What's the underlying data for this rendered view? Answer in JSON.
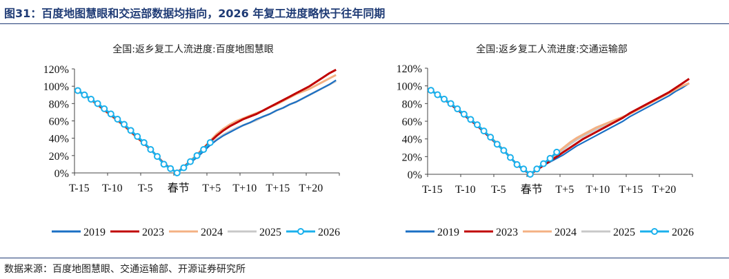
{
  "figure_title": "图31：百度地图慧眼和交运部数据均指向，2026 年复工进度略快于往年同期",
  "source": "数据来源：百度地图慧眼、交通运输部、开源证券研究所",
  "colors": {
    "2019": "#1a6fc4",
    "2023": "#c00000",
    "2024": "#f4b183",
    "2025": "#c8c8c8",
    "2026": "#1ab0ec"
  },
  "chart_data": [
    {
      "type": "line",
      "title": "全国:返乡复工人流进度:百度地图慧眼",
      "x_tick_labels": [
        "T-15",
        "T-10",
        "T-5",
        "春节",
        "T+5",
        "T+10",
        "T+15",
        "T+20"
      ],
      "x_tick_days": [
        -15,
        -10,
        -5,
        0,
        5,
        10,
        15,
        20
      ],
      "x_range": [
        -15,
        24
      ],
      "ylim": [
        0,
        120
      ],
      "y_ticks": [
        "0%",
        "20%",
        "40%",
        "60%",
        "80%",
        "100%",
        "120%"
      ],
      "legend_position": "bottom",
      "series": [
        {
          "name": "2019",
          "start": -15,
          "values": [
            95,
            90,
            85,
            79,
            73,
            67,
            61,
            55,
            48,
            41,
            34,
            27,
            19,
            11,
            5,
            0,
            6,
            12,
            18,
            25,
            32,
            38,
            43,
            47,
            51,
            55,
            58,
            62,
            65,
            68,
            72,
            75,
            79,
            82,
            86,
            90,
            94,
            98,
            102,
            107
          ]
        },
        {
          "name": "2023",
          "start": -15,
          "values": [
            95,
            90,
            85,
            79,
            73,
            67,
            61,
            55,
            48,
            41,
            34,
            27,
            19,
            11,
            5,
            0,
            7,
            13,
            20,
            28,
            36,
            43,
            49,
            54,
            58,
            62,
            65,
            68,
            72,
            76,
            80,
            84,
            88,
            92,
            96,
            100,
            105,
            110,
            115,
            119
          ]
        },
        {
          "name": "2024",
          "start": -15,
          "values": [
            95,
            90,
            84,
            78,
            72,
            66,
            60,
            54,
            47,
            40,
            34,
            27,
            19,
            11,
            5,
            0,
            7,
            14,
            21,
            29,
            37,
            45,
            51,
            56,
            60,
            63,
            66,
            69,
            72,
            76,
            79,
            83,
            87,
            91,
            94,
            97,
            101,
            105,
            109,
            113
          ]
        },
        {
          "name": "2025",
          "start": -15,
          "values": [
            95,
            90,
            85,
            79,
            73,
            67,
            61,
            55,
            48,
            41,
            34,
            27,
            19,
            11,
            5,
            0,
            6,
            12,
            18,
            25,
            33,
            39,
            44,
            48,
            52,
            55,
            58,
            61,
            65,
            68,
            72,
            75,
            79,
            82,
            86,
            90,
            94,
            98,
            102,
            106
          ]
        },
        {
          "name": "2026",
          "start": -15,
          "markers": true,
          "values": [
            95,
            90,
            85,
            80,
            74,
            68,
            62,
            56,
            49,
            42,
            35,
            27,
            19,
            10,
            5,
            0,
            6,
            13,
            20,
            27,
            35
          ]
        }
      ]
    },
    {
      "type": "line",
      "title": "全国:返乡复工人流进度:交通运输部",
      "x_tick_labels": [
        "T-15",
        "T-10",
        "T-5",
        "春节",
        "T+5",
        "T+10",
        "T+15",
        "T+20"
      ],
      "x_tick_days": [
        -15,
        -10,
        -5,
        0,
        5,
        10,
        15,
        20
      ],
      "x_range": [
        -15,
        24
      ],
      "ylim": [
        0,
        120
      ],
      "y_ticks": [
        "0%",
        "20%",
        "40%",
        "60%",
        "80%",
        "100%",
        "120%"
      ],
      "legend_position": "bottom",
      "series": [
        {
          "name": "2019",
          "start": -15,
          "values": [
            95,
            90,
            85,
            79,
            73,
            67,
            61,
            55,
            48,
            41,
            34,
            27,
            19,
            11,
            5,
            0,
            5,
            10,
            14,
            18,
            22,
            27,
            32,
            36,
            40,
            44,
            48,
            52,
            56,
            60,
            65,
            69,
            73,
            77,
            81,
            85,
            89,
            94,
            98,
            103
          ]
        },
        {
          "name": "2023",
          "start": -15,
          "values": [
            95,
            90,
            85,
            79,
            73,
            67,
            61,
            55,
            48,
            41,
            34,
            27,
            19,
            11,
            5,
            0,
            5,
            10,
            15,
            20,
            25,
            30,
            35,
            40,
            44,
            48,
            52,
            56,
            60,
            64,
            69,
            73,
            77,
            81,
            85,
            89,
            93,
            98,
            103,
            108
          ]
        },
        {
          "name": "2024",
          "start": -15,
          "values": [
            95,
            90,
            85,
            80,
            74,
            68,
            62,
            56,
            49,
            42,
            35,
            27,
            19,
            11,
            5,
            0,
            6,
            12,
            18,
            24,
            30,
            36,
            41,
            45,
            49,
            53,
            56,
            59,
            62,
            65,
            68,
            72,
            76,
            80,
            84,
            88,
            92,
            96,
            100,
            103
          ]
        },
        {
          "name": "2025",
          "start": -15,
          "values": [
            95,
            90,
            85,
            79,
            73,
            67,
            61,
            55,
            48,
            41,
            34,
            27,
            19,
            11,
            5,
            0,
            5,
            11,
            17,
            23,
            28,
            34,
            39,
            43,
            47,
            51,
            54,
            58,
            61,
            65,
            68,
            72,
            76,
            80,
            84,
            88,
            92,
            95,
            99,
            103
          ]
        },
        {
          "name": "2026",
          "start": -15,
          "markers": true,
          "values": [
            95,
            90,
            85,
            80,
            74,
            68,
            62,
            56,
            49,
            42,
            34,
            27,
            19,
            11,
            6,
            0,
            6,
            12,
            18,
            25
          ]
        }
      ]
    }
  ]
}
